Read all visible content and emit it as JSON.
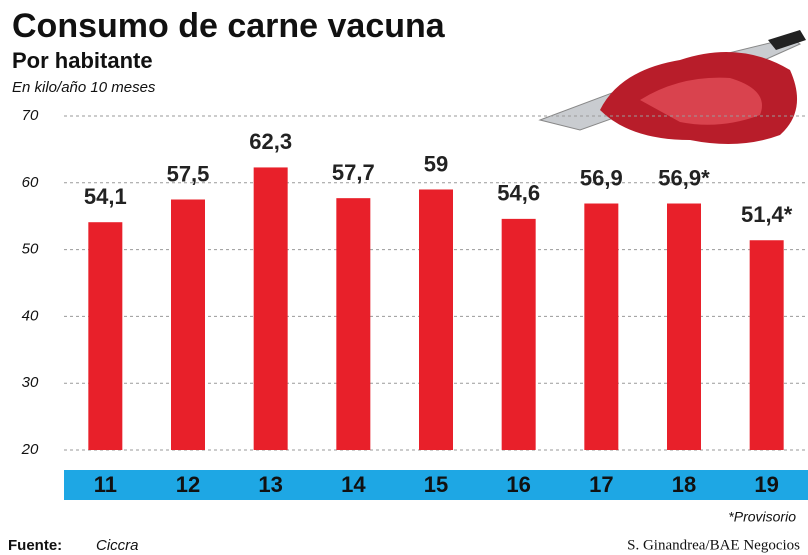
{
  "chart_data": {
    "type": "bar",
    "title": "Consumo de carne vacuna",
    "subtitle": "Por habitante",
    "unit_note": "En kilo/año 10 meses",
    "categories": [
      "11",
      "12",
      "13",
      "14",
      "15",
      "16",
      "17",
      "18",
      "19"
    ],
    "values": [
      54.1,
      57.5,
      62.3,
      57.7,
      59,
      54.6,
      56.9,
      56.9,
      51.4
    ],
    "value_labels": [
      "54,1",
      "57,5",
      "62,3",
      "57,7",
      "59",
      "54,6",
      "56,9",
      "56,9*",
      "51,4*"
    ],
    "color": "#e8202a",
    "category_band_color": "#1ea7e4",
    "ylim": [
      20,
      70
    ],
    "yticks": [
      20,
      30,
      40,
      50,
      60,
      70
    ],
    "grid": true,
    "footnote": "*Provisorio",
    "source_label": "Fuente:",
    "source": "Ciccra",
    "credit": "S. Ginandrea/BAE Negocios"
  }
}
